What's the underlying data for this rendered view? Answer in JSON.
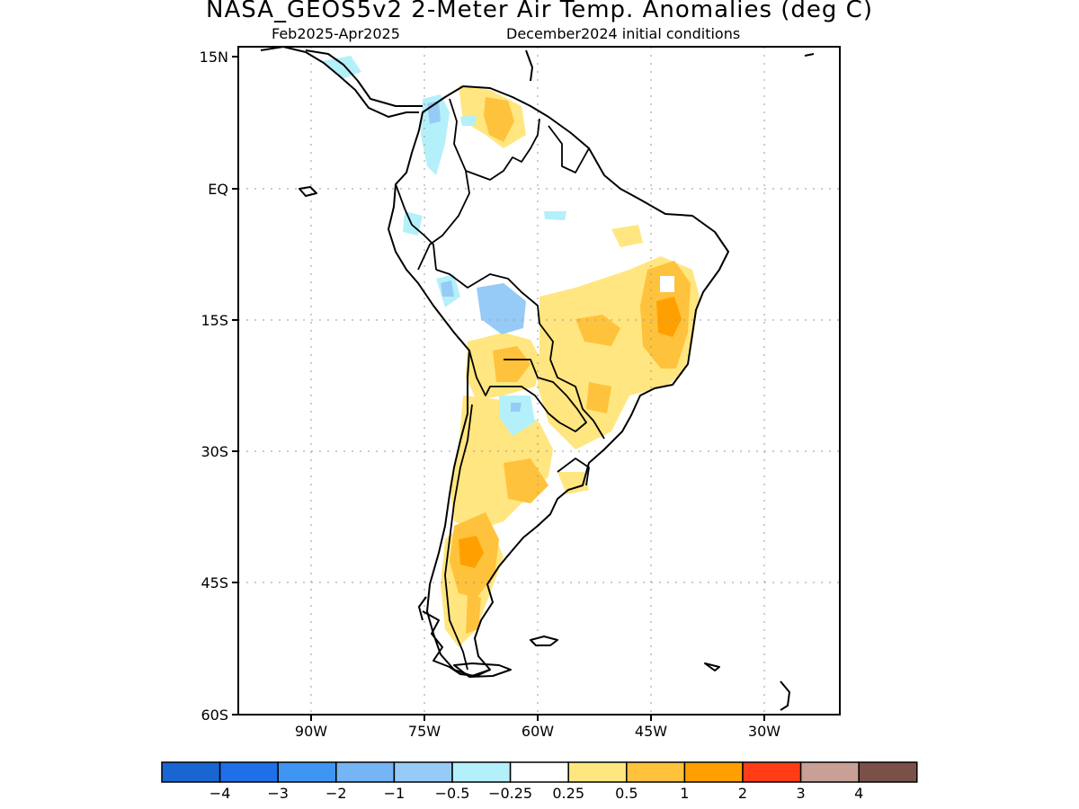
{
  "map": {
    "title": "NASA_GEOS5v2 2-Meter Air Temp. Anomalies (deg C)",
    "period": "Feb2025-Apr2025",
    "init": "December2024 initial conditions",
    "lat_labels": [
      "15N",
      "EQ",
      "15S",
      "30S",
      "45S",
      "60S"
    ],
    "lon_labels": [
      "90W",
      "75W",
      "60W",
      "45W",
      "30W"
    ],
    "extent": {
      "lon": [
        -100,
        -20
      ],
      "lat": [
        -60,
        15
      ]
    }
  },
  "legend": {
    "colors": [
      "#1966d2",
      "#1f6fe8",
      "#3f95f2",
      "#75b5f5",
      "#96cbf7",
      "#b4f0fa",
      "#ffffff",
      "#ffe680",
      "#ffc23c",
      "#ffa000",
      "#ff3c14",
      "#c8a096",
      "#7a5048"
    ],
    "labels": [
      "-4",
      "-3",
      "-2",
      "-1",
      "-0.5",
      "-0.25",
      "0.25",
      "0.5",
      "1",
      "2",
      "3",
      "4"
    ]
  }
}
